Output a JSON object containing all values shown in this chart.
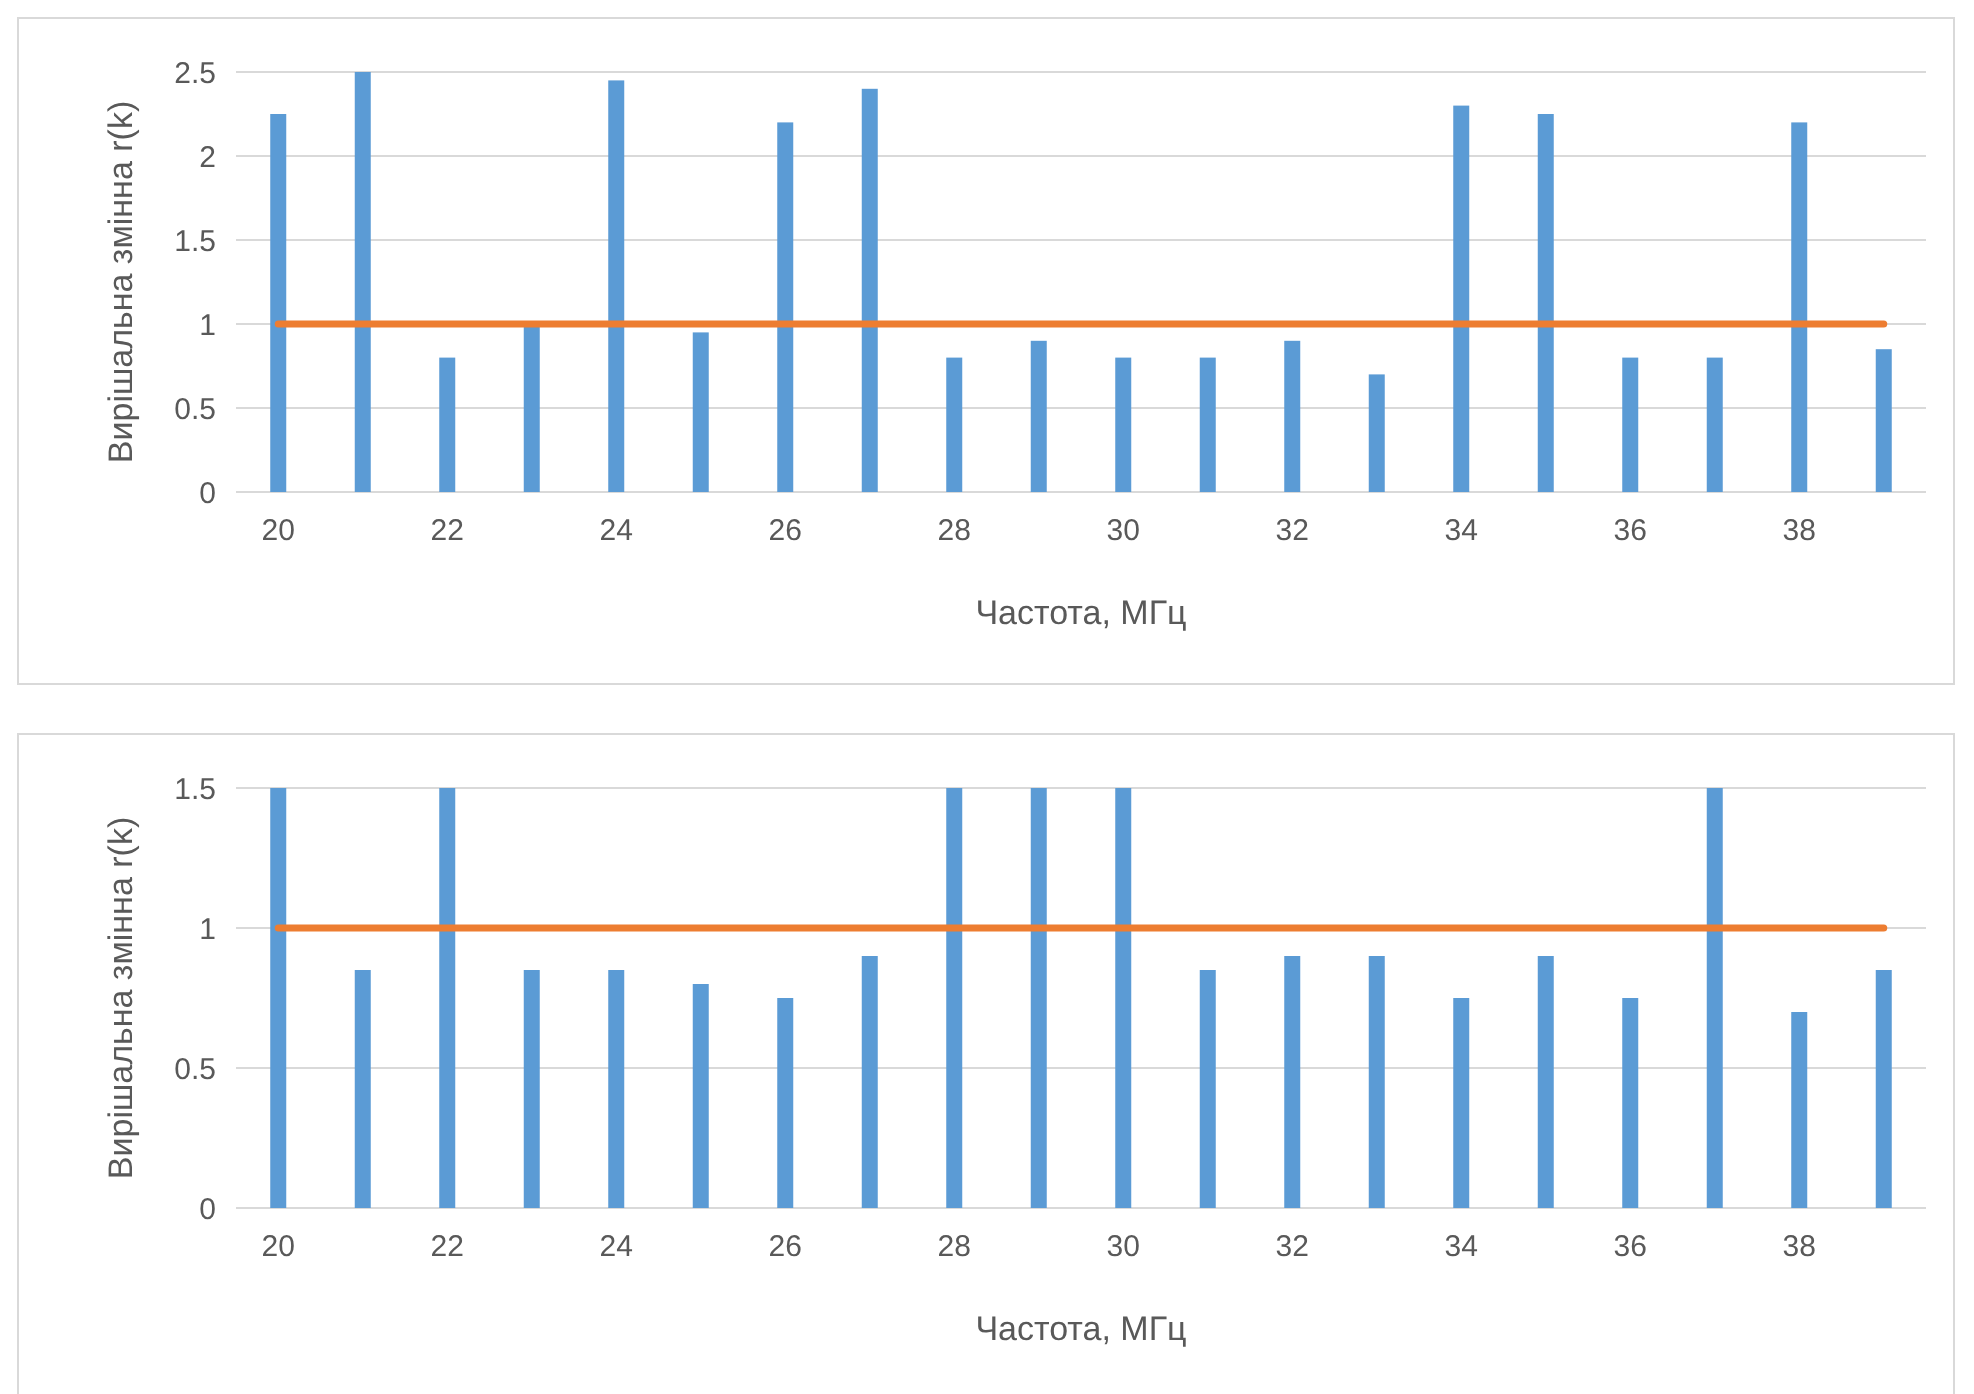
{
  "chart_data": [
    {
      "type": "bar",
      "xlabel": "Частота, МГц",
      "ylabel": "Вирішальна змінна r(k)",
      "categories": [
        "20",
        null,
        "22",
        null,
        "24",
        null,
        "26",
        null,
        "28",
        null,
        "30",
        null,
        "32",
        null,
        "34",
        null,
        "36",
        null,
        "38",
        null
      ],
      "ylim": [
        0,
        2.5
      ],
      "yticks": [
        0,
        0.5,
        1,
        1.5,
        2,
        2.5
      ],
      "grid": "y",
      "series": [
        {
          "color": "#5b9bd5",
          "values": [
            2.25,
            2.5,
            0.8,
            1.0,
            2.45,
            0.95,
            2.2,
            2.4,
            0.8,
            0.9,
            0.8,
            0.8,
            0.9,
            0.7,
            2.3,
            2.25,
            0.8,
            0.8,
            2.2,
            0.85
          ]
        },
        {
          "type": "line",
          "color": "#ed7d31",
          "values": [
            1,
            1,
            1,
            1,
            1,
            1,
            1,
            1,
            1,
            1,
            1,
            1,
            1,
            1,
            1,
            1,
            1,
            1,
            1,
            1
          ]
        }
      ]
    },
    {
      "type": "bar",
      "xlabel": "Частота, МГц",
      "ylabel": "Вирішальна змінна r(k)",
      "categories": [
        "20",
        null,
        "22",
        null,
        "24",
        null,
        "26",
        null,
        "28",
        null,
        "30",
        null,
        "32",
        null,
        "34",
        null,
        "36",
        null,
        "38",
        null
      ],
      "ylim": [
        0,
        1.5
      ],
      "yticks": [
        0,
        0.5,
        1,
        1.5
      ],
      "grid": "y",
      "series": [
        {
          "color": "#5b9bd5",
          "values": [
            1.5,
            0.85,
            1.5,
            0.85,
            0.85,
            0.8,
            0.75,
            0.9,
            1.5,
            1.5,
            1.5,
            0.85,
            0.9,
            0.9,
            0.75,
            0.9,
            0.75,
            1.5,
            0.7,
            0.85
          ]
        },
        {
          "type": "line",
          "color": "#ed7d31",
          "values": [
            1,
            1,
            1,
            1,
            1,
            1,
            1,
            1,
            1,
            1,
            1,
            1,
            1,
            1,
            1,
            1,
            1,
            1,
            1,
            1
          ]
        }
      ]
    }
  ]
}
